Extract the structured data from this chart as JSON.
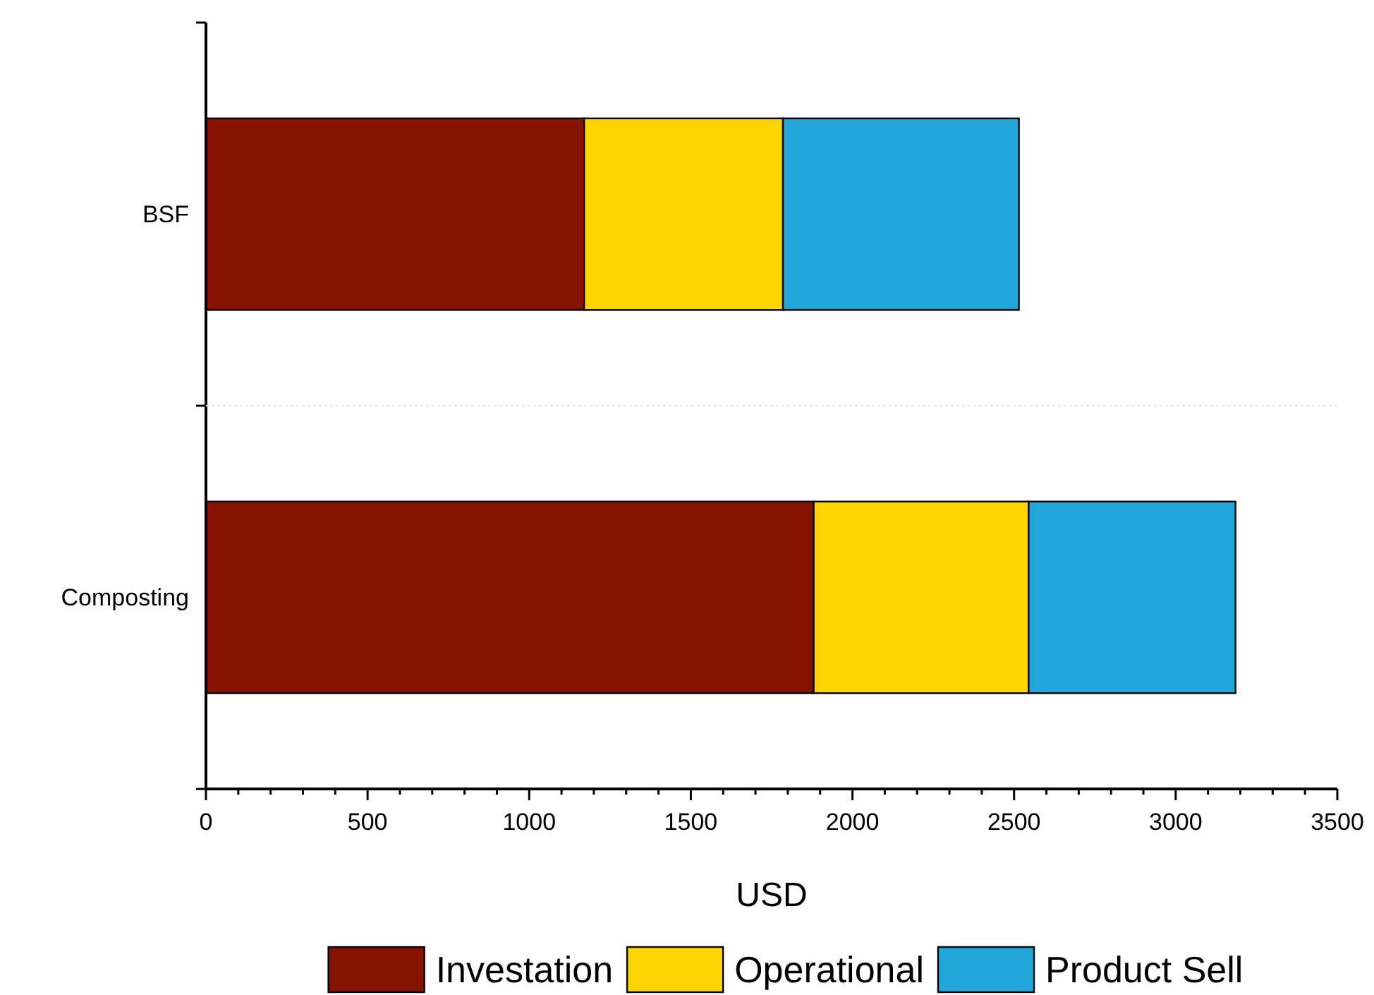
{
  "chart_data": {
    "type": "bar",
    "orientation": "horizontal",
    "stacked": true,
    "categories": [
      "BSF",
      "Composting"
    ],
    "series": [
      {
        "name": "Investation",
        "color": "#851300",
        "values": [
          1170,
          1880
        ]
      },
      {
        "name": "Operational",
        "color": "#ffd500",
        "values": [
          615,
          665
        ]
      },
      {
        "name": "Product Sell",
        "color": "#23a6d8",
        "values": [
          730,
          640
        ]
      }
    ],
    "xlabel": "USD",
    "xlim": [
      0,
      3500
    ],
    "xticks": [
      0,
      {
        "value": 100,
        "label": null
      },
      {
        "value": 200,
        "label": null
      },
      {
        "value": 300,
        "label": null
      },
      {
        "value": 400,
        "label": null
      },
      500,
      {
        "value": 600,
        "label": null
      },
      {
        "value": 700,
        "label": null
      },
      {
        "value": 800,
        "label": null
      },
      {
        "value": 900,
        "label": null
      },
      1000,
      {
        "value": 1100,
        "label": null
      },
      {
        "value": 1200,
        "label": null
      },
      {
        "value": 1300,
        "label": null
      },
      {
        "value": 1400,
        "label": null
      },
      1500,
      {
        "value": 1600,
        "label": null
      },
      {
        "value": 1700,
        "label": null
      },
      {
        "value": 1800,
        "label": null
      },
      {
        "value": 1900,
        "label": null
      },
      2000,
      {
        "value": 2100,
        "label": null
      },
      {
        "value": 2200,
        "label": null
      },
      {
        "value": 2300,
        "label": null
      },
      {
        "value": 2400,
        "label": null
      },
      2500,
      {
        "value": 2600,
        "label": null
      },
      {
        "value": 2700,
        "label": null
      },
      {
        "value": 2800,
        "label": null
      },
      {
        "value": 2900,
        "label": null
      },
      3000,
      {
        "value": 3100,
        "label": null
      },
      {
        "value": 3200,
        "label": null
      },
      {
        "value": 3300,
        "label": null
      },
      {
        "value": 3400,
        "label": null
      },
      3500
    ],
    "legend": "bottom"
  }
}
